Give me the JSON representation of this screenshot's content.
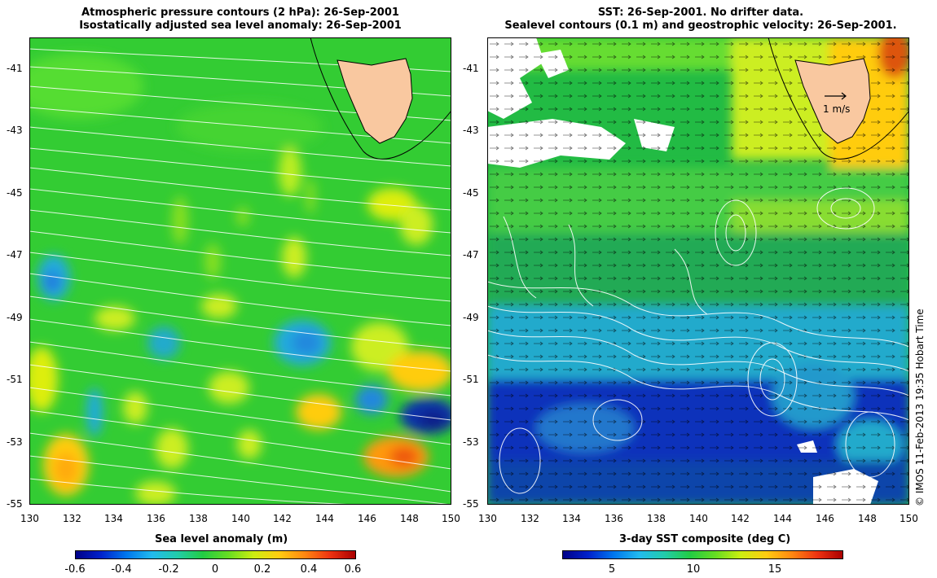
{
  "left_panel": {
    "title_line1": "Atmospheric pressure contours (2 hPa): 26-Sep-2001",
    "title_line2": "Isostatically adjusted sea level anomaly: 26-Sep-2001",
    "colorbar": {
      "label": "Sea level anomaly (m)",
      "ticks": [
        "-0.6",
        "-0.4",
        "-0.2",
        "0",
        "0.2",
        "0.4",
        "0.6"
      ]
    }
  },
  "right_panel": {
    "title_line1": "SST: 26-Sep-2001. No drifter data.",
    "title_line2": "Sealevel contours (0.1 m) and geostrophic velocity: 26-Sep-2001.",
    "velocity_scale_label": "1 m/s",
    "colorbar": {
      "label": "3-day SST composite (deg C)",
      "ticks": [
        "5",
        "10",
        "15"
      ]
    }
  },
  "axes": {
    "lat_ticks": [
      "-41",
      "-43",
      "-45",
      "-47",
      "-49",
      "-51",
      "-53",
      "-55"
    ],
    "lon_ticks": [
      "130",
      "132",
      "134",
      "136",
      "138",
      "140",
      "142",
      "144",
      "146",
      "148",
      "150"
    ],
    "lat_range": [
      -55,
      -40
    ],
    "lon_range": [
      130,
      150
    ]
  },
  "credit": "© IMOS 11-Feb-2013 19:35 Hobart Time",
  "colors": {
    "land": "#f9c8a0",
    "coast": "#000000",
    "contour": "#ffffff"
  }
}
